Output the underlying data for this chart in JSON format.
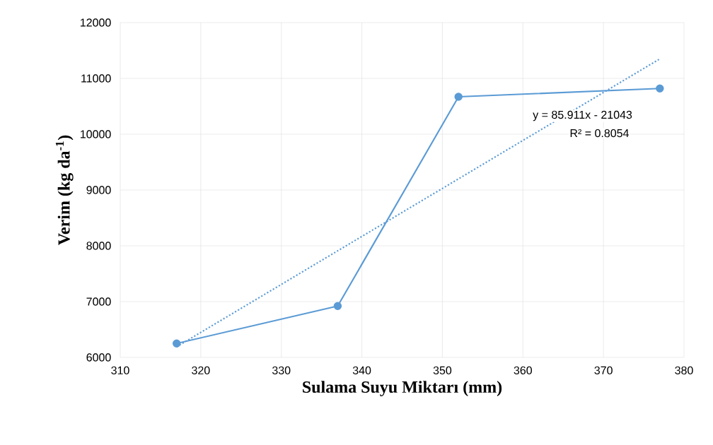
{
  "chart_data": {
    "type": "line",
    "xlabel": "Sulama Suyu Miktarı (mm)",
    "ylabel": "Verim (kg da$^{-1}$)",
    "xlim": [
      310,
      380
    ],
    "xticks": [
      310,
      320,
      330,
      340,
      350,
      360,
      370,
      380
    ],
    "ylim": [
      6000,
      12000
    ],
    "yticks": [
      6000,
      7000,
      8000,
      9000,
      10000,
      11000,
      12000
    ],
    "grid": true,
    "marker": "circle",
    "line_style": "solid",
    "series": [
      {
        "color": "#5b9bd5",
        "x": [
          317,
          337,
          352,
          377
        ],
        "values": [
          6250,
          6920,
          10670,
          10820
        ]
      },
      {
        "type": "line",
        "color": "#5b9bd5",
        "x": [
          317,
          377
        ],
        "values": [
          6190,
          11350
        ],
        "marker": "none",
        "line_style": "dotted"
      }
    ],
    "annotations": [
      "y = 85.911x - 21043",
      "R² = 0.8054"
    ]
  }
}
